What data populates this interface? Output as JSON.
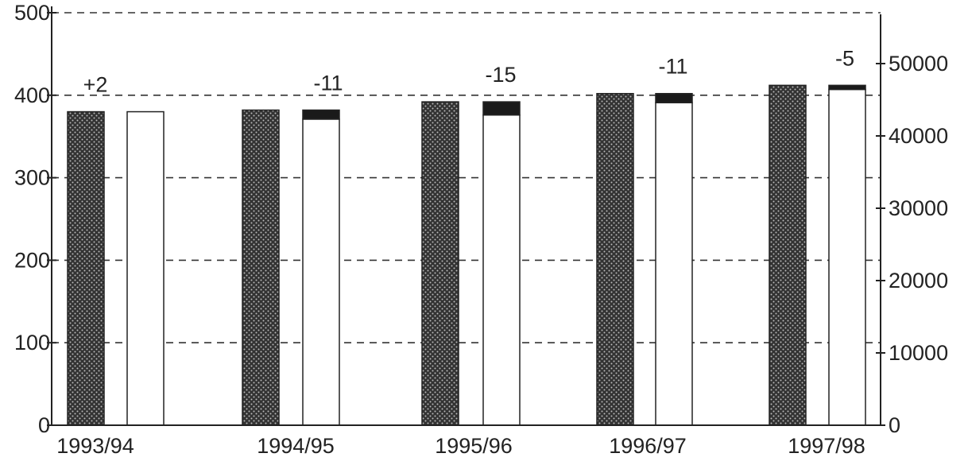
{
  "chart_data": {
    "type": "bar",
    "title": "",
    "xlabel": "",
    "ylabel": "",
    "categories": [
      "1993/94",
      "1994/95",
      "1995/96",
      "1996/97",
      "1997/98"
    ],
    "series": [
      {
        "values": [
          380,
          382,
          392,
          402,
          412
        ],
        "color": "#3a3a3a",
        "pattern": "dotted"
      },
      {
        "values": [
          380,
          371,
          376,
          391,
          407
        ],
        "color": "#ffffff"
      }
    ],
    "shortfall_color": "#1a1a1a",
    "annotations": [
      "+2",
      "-11",
      "-15",
      "-11",
      "-5"
    ],
    "left_axis": {
      "ylim": [
        0,
        500
      ],
      "ticks": [
        "0",
        "100",
        "200",
        "300",
        "400",
        "500"
      ]
    },
    "right_axis": {
      "ticks": [
        "0",
        "10000",
        "20000",
        "30000",
        "40000",
        "50000"
      ]
    },
    "grid": "dashed horizontal"
  }
}
